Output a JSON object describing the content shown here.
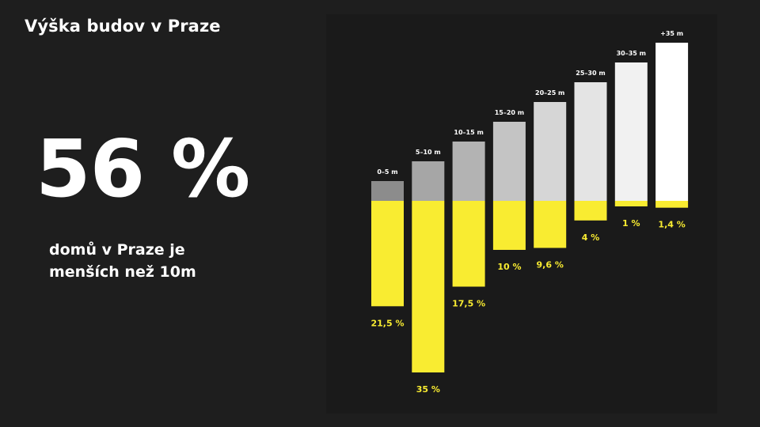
{
  "slide": {
    "title": "Výška budov v Praze",
    "big_stat": "56 %",
    "caption_line1": "domů v Praze je",
    "caption_line2": "menších než 10m"
  },
  "colors": {
    "background": "#1e1e1e",
    "accent_yellow": "#f9ec31",
    "text": "#ffffff"
  },
  "chart_data": {
    "type": "bar",
    "categories": [
      "0–5 m",
      "5–10 m",
      "10–15 m",
      "15–20 m",
      "20–25 m",
      "25–30 m",
      "30–35 m",
      "+35 m"
    ],
    "series": [
      {
        "values": [
          21.5,
          35,
          17.5,
          10,
          9.6,
          4,
          1,
          1.4
        ],
        "labels": [
          "21,5 %",
          "35 %",
          "17,5 %",
          "10 %",
          "9,6 %",
          "4 %",
          "1 %",
          "1,4 %"
        ],
        "color": "#f9ec31",
        "direction": "down"
      }
    ],
    "height_steps": [
      1,
      2,
      3,
      4,
      5,
      6,
      7,
      8
    ],
    "step_colors": [
      "#8c8c8c",
      "#a6a6a6",
      "#b3b3b3",
      "#c4c4c4",
      "#d6d6d6",
      "#e4e4e4",
      "#f1f1f1",
      "#ffffff"
    ],
    "title": "",
    "xlabel": "",
    "ylabel": "",
    "ylim": [
      0,
      35
    ],
    "grid": false,
    "legend": "none"
  }
}
